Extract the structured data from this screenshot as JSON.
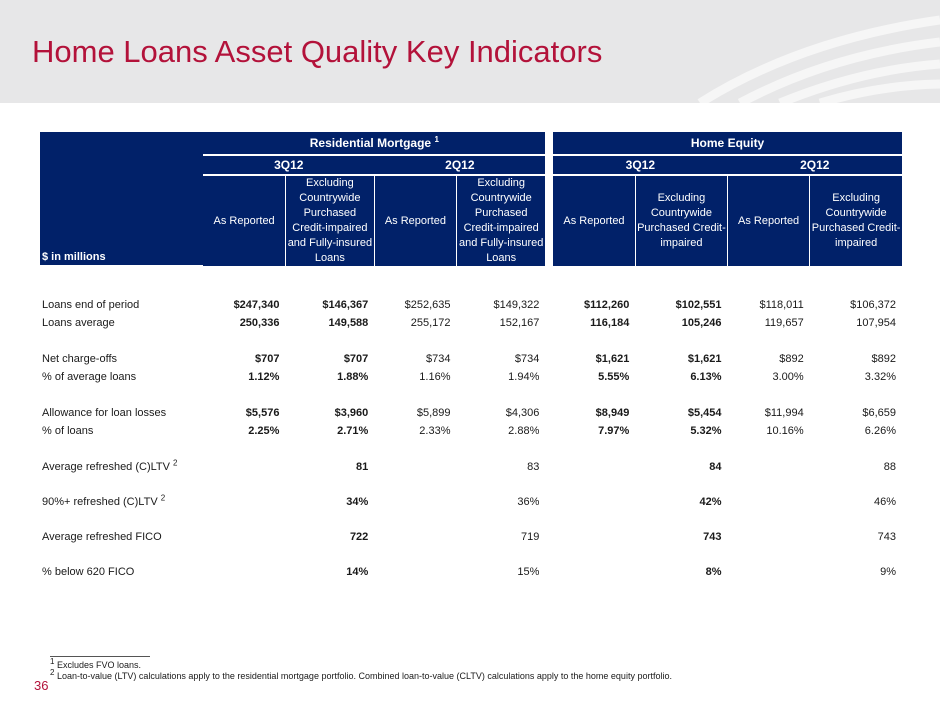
{
  "title": "Home Loans Asset Quality Key Indicators",
  "table": {
    "unit_label": "$ in millions",
    "group_res": "Residential Mortgage",
    "group_res_sup": "1",
    "group_he": "Home Equity",
    "period_3q": "3Q12",
    "period_2q": "2Q12",
    "col_as_reported": "As Reported",
    "col_excl_res": "Excluding Countrywide Purchased Credit-impaired and Fully-insured Loans",
    "col_excl_he": "Excluding Countrywide Purchased Credit-impaired",
    "rows": [
      {
        "label": "Loans end of period",
        "v": [
          "$247,340",
          "$146,367",
          "$252,635",
          "$149,322",
          "$112,260",
          "$102,551",
          "$118,011",
          "$106,372"
        ]
      },
      {
        "label": "Loans average",
        "v": [
          "250,336",
          "149,588",
          "255,172",
          "152,167",
          "116,184",
          "105,246",
          "119,657",
          "107,954"
        ]
      },
      {
        "label": "Net charge-offs",
        "v": [
          "$707",
          "$707",
          "$734",
          "$734",
          "$1,621",
          "$1,621",
          "$892",
          "$892"
        ]
      },
      {
        "label": "% of average loans",
        "v": [
          "1.12%",
          "1.88%",
          "1.16%",
          "1.94%",
          "5.55%",
          "6.13%",
          "3.00%",
          "3.32%"
        ]
      },
      {
        "label": "Allowance for loan losses",
        "v": [
          "$5,576",
          "$3,960",
          "$5,899",
          "$4,306",
          "$8,949",
          "$5,454",
          "$11,994",
          "$6,659"
        ]
      },
      {
        "label": "% of loans",
        "v": [
          "2.25%",
          "2.71%",
          "2.33%",
          "2.88%",
          "7.97%",
          "5.32%",
          "10.16%",
          "6.26%"
        ]
      },
      {
        "label": "Average refreshed (C)LTV",
        "sup": "2",
        "v": [
          "81",
          "83",
          "84",
          "88"
        ]
      },
      {
        "label": "90%+ refreshed (C)LTV",
        "sup": "2",
        "v": [
          "34%",
          "36%",
          "42%",
          "46%"
        ]
      },
      {
        "label": "Average refreshed FICO",
        "v": [
          "722",
          "719",
          "743",
          "743"
        ]
      },
      {
        "label": "% below 620 FICO",
        "v": [
          "14%",
          "15%",
          "8%",
          "9%"
        ]
      }
    ]
  },
  "footnotes": {
    "n1_mark": "1",
    "n1": "Excludes FVO loans.",
    "n2_mark": "2",
    "n2": "Loan-to-value (LTV) calculations apply to the residential mortgage portfolio. Combined loan-to-value (CLTV) calculations apply to the home equity portfolio."
  },
  "page_number": "36"
}
